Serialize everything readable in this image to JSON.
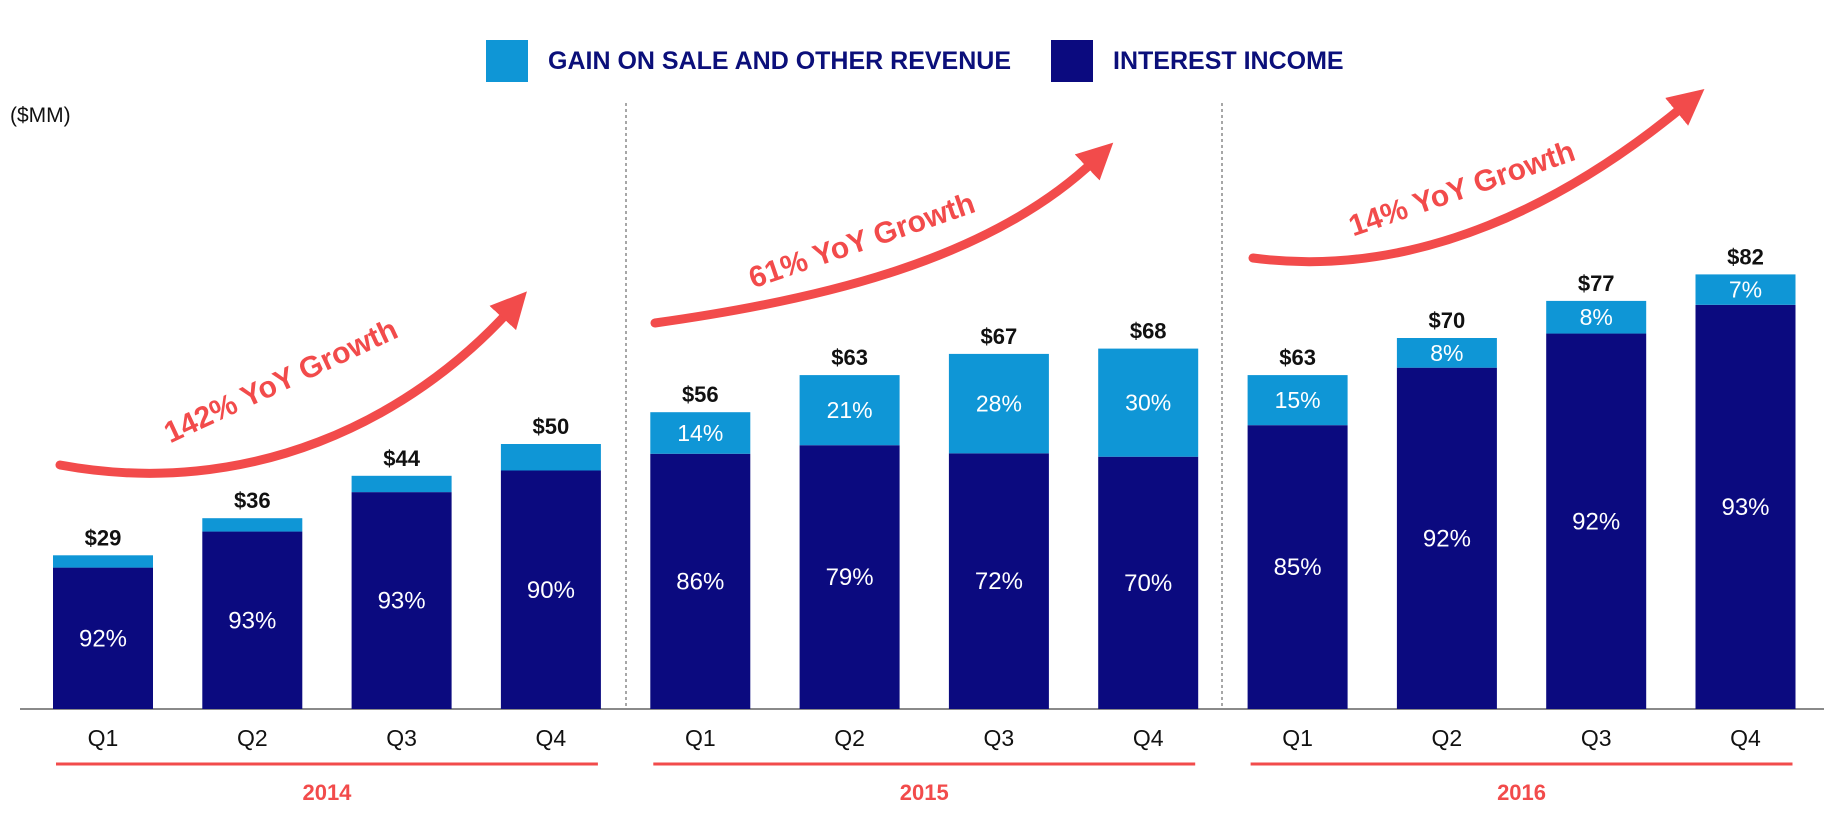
{
  "colors": {
    "interest": "#0b0a7f",
    "gain": "#0f96d6",
    "accent": "#f24b4b",
    "axis": "#8a8a8a"
  },
  "legend": {
    "gain_label": "GAIN ON SALE AND OTHER REVENUE",
    "interest_label": "INTEREST INCOME"
  },
  "unit_label": "($MM)",
  "chart_data": {
    "type": "bar",
    "stacked": true,
    "ylabel": "($MM)",
    "ylim": [
      0,
      82
    ],
    "groups": [
      {
        "year": "2014",
        "growth_label": "142% YoY Growth",
        "quarters": [
          {
            "q": "Q1",
            "total": 29,
            "total_label": "$29",
            "interest_pct": 92,
            "gain_pct": 8,
            "interest_label": "92%",
            "gain_label": ""
          },
          {
            "q": "Q2",
            "total": 36,
            "total_label": "$36",
            "interest_pct": 93,
            "gain_pct": 7,
            "interest_label": "93%",
            "gain_label": ""
          },
          {
            "q": "Q3",
            "total": 44,
            "total_label": "$44",
            "interest_pct": 93,
            "gain_pct": 7,
            "interest_label": "93%",
            "gain_label": ""
          },
          {
            "q": "Q4",
            "total": 50,
            "total_label": "$50",
            "interest_pct": 90,
            "gain_pct": 10,
            "interest_label": "90%",
            "gain_label": ""
          }
        ]
      },
      {
        "year": "2015",
        "growth_label": "61% YoY Growth",
        "quarters": [
          {
            "q": "Q1",
            "total": 56,
            "total_label": "$56",
            "interest_pct": 86,
            "gain_pct": 14,
            "interest_label": "86%",
            "gain_label": "14%"
          },
          {
            "q": "Q2",
            "total": 63,
            "total_label": "$63",
            "interest_pct": 79,
            "gain_pct": 21,
            "interest_label": "79%",
            "gain_label": "21%"
          },
          {
            "q": "Q3",
            "total": 67,
            "total_label": "$67",
            "interest_pct": 72,
            "gain_pct": 28,
            "interest_label": "72%",
            "gain_label": "28%"
          },
          {
            "q": "Q4",
            "total": 68,
            "total_label": "$68",
            "interest_pct": 70,
            "gain_pct": 30,
            "interest_label": "70%",
            "gain_label": "30%"
          }
        ]
      },
      {
        "year": "2016",
        "growth_label": "14% YoY Growth",
        "quarters": [
          {
            "q": "Q1",
            "total": 63,
            "total_label": "$63",
            "interest_pct": 85,
            "gain_pct": 15,
            "interest_label": "85%",
            "gain_label": "15%"
          },
          {
            "q": "Q2",
            "total": 70,
            "total_label": "$70",
            "interest_pct": 92,
            "gain_pct": 8,
            "interest_label": "92%",
            "gain_label": "8%"
          },
          {
            "q": "Q3",
            "total": 77,
            "total_label": "$77",
            "interest_pct": 92,
            "gain_pct": 8,
            "interest_label": "92%",
            "gain_label": "8%"
          },
          {
            "q": "Q4",
            "total": 82,
            "total_label": "$82",
            "interest_pct": 93,
            "gain_pct": 7,
            "interest_label": "93%",
            "gain_label": "7%"
          }
        ]
      }
    ]
  }
}
